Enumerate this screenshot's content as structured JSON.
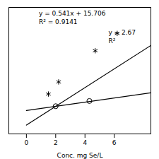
{
  "chart_data": {
    "type": "scatter",
    "xlabel": "Conc. mg Se/L",
    "xlim": [
      -1.2,
      8.5
    ],
    "xticks": [
      0,
      2,
      4,
      6
    ],
    "ylim": [
      15.2,
      22.5
    ],
    "tick_labels": "x",
    "grid": false,
    "series": [
      {
        "type": "line",
        "color": "#000000",
        "x": [
          0.0,
          8.5
        ],
        "values": [
          15.706,
          20.3045
        ]
      },
      {
        "type": "line",
        "color": "#000000",
        "x": [
          0.0,
          8.5
        ],
        "values": [
          16.55,
          17.57
        ]
      },
      {
        "type": "scatter",
        "marker": "asterisk",
        "color": "#000000",
        "x": [
          1.5,
          2.2,
          4.7,
          6.2
        ],
        "values": [
          17.5,
          18.2,
          20.0,
          21.0
        ]
      },
      {
        "type": "scatter",
        "marker": "circle",
        "color": "#000000",
        "x": [
          2.0,
          4.3
        ],
        "values": [
          16.8,
          17.1
        ]
      }
    ],
    "annotations": [
      {
        "text": "y = 0.541x + 15.706",
        "x": 0.85,
        "y": 22.3
      },
      {
        "text": "R² = 0.9141",
        "x": 0.85,
        "y": 21.8
      },
      {
        "text": "y = 2.67",
        "x": 5.6,
        "y": 21.2
      },
      {
        "text": "R²",
        "x": 5.6,
        "y": 20.7
      }
    ]
  }
}
